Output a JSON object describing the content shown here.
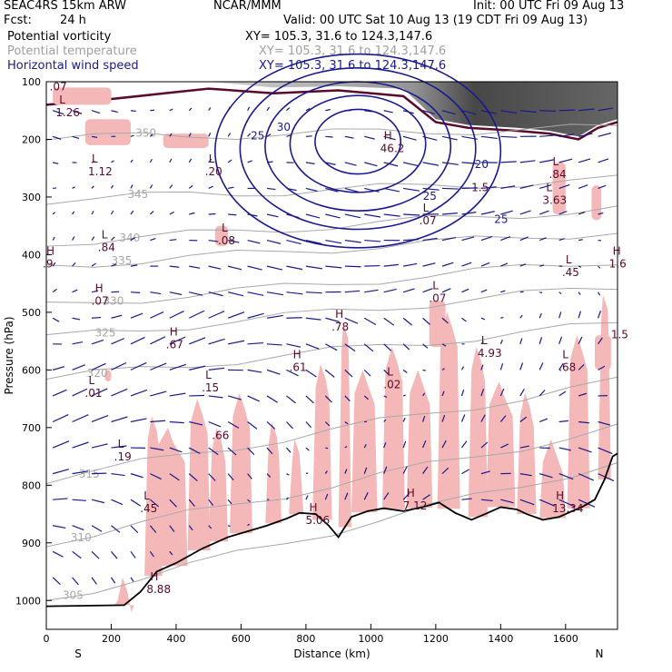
{
  "header": {
    "model": "SEAC4RS 15km ARW",
    "org": "NCAR/MMM",
    "init": "Init: 00 UTC Fri 09 Aug 13",
    "fcst_label": "Fcst:",
    "fcst_value": "24 h",
    "valid": "Valid: 00 UTC Sat 10 Aug 13 (19 CDT Fri 09 Aug 13)"
  },
  "fields": [
    {
      "name": "Potential vorticity",
      "xy": "XY= 105.3, 31.6 to 124.3,147.6",
      "color": "#000000"
    },
    {
      "name": "Potential temperature",
      "xy": "XY= 105.3, 31.6 to 124.3,147.6",
      "color": "#a0a0a0"
    },
    {
      "name": "Horizontal wind speed",
      "xy": "XY= 105.3, 31.6 to 124.3,147.6",
      "color": "#1a1a8c"
    }
  ],
  "chart_data": {
    "type": "cross-section",
    "xlabel": "Distance (km)",
    "ylabel": "Pressure (hPa)",
    "xlim": [
      0,
      1760
    ],
    "ylim": [
      1050,
      100
    ],
    "x_ticks": [
      0,
      200,
      400,
      600,
      800,
      1000,
      1200,
      1400,
      1600
    ],
    "y_ticks": [
      100,
      200,
      300,
      400,
      500,
      600,
      700,
      800,
      900,
      1000
    ],
    "end_labels": {
      "left": "S",
      "right": "N"
    },
    "colors": {
      "pv_shade": "#f5b8b8",
      "pv_contour": "#5a0a2a",
      "theta": "#a8a8a8",
      "wind": "#1a1a8c",
      "terrain": "#000000",
      "stratosphere_shade": "#3a3a3a"
    },
    "terrain_surface": [
      {
        "x": 0,
        "p": 1010
      },
      {
        "x": 240,
        "p": 1008
      },
      {
        "x": 290,
        "p": 985
      },
      {
        "x": 340,
        "p": 950
      },
      {
        "x": 400,
        "p": 935
      },
      {
        "x": 480,
        "p": 910
      },
      {
        "x": 560,
        "p": 890
      },
      {
        "x": 620,
        "p": 880
      },
      {
        "x": 680,
        "p": 870
      },
      {
        "x": 740,
        "p": 858
      },
      {
        "x": 780,
        "p": 848
      },
      {
        "x": 830,
        "p": 850
      },
      {
        "x": 870,
        "p": 870
      },
      {
        "x": 900,
        "p": 890
      },
      {
        "x": 940,
        "p": 855
      },
      {
        "x": 990,
        "p": 845
      },
      {
        "x": 1040,
        "p": 840
      },
      {
        "x": 1100,
        "p": 845
      },
      {
        "x": 1160,
        "p": 838
      },
      {
        "x": 1210,
        "p": 830
      },
      {
        "x": 1260,
        "p": 848
      },
      {
        "x": 1310,
        "p": 860
      },
      {
        "x": 1360,
        "p": 848
      },
      {
        "x": 1400,
        "p": 838
      },
      {
        "x": 1450,
        "p": 842
      },
      {
        "x": 1480,
        "p": 850
      },
      {
        "x": 1530,
        "p": 860
      },
      {
        "x": 1580,
        "p": 855
      },
      {
        "x": 1620,
        "p": 845
      },
      {
        "x": 1650,
        "p": 838
      },
      {
        "x": 1690,
        "p": 825
      },
      {
        "x": 1720,
        "p": 790
      },
      {
        "x": 1745,
        "p": 750
      },
      {
        "x": 1760,
        "p": 745
      }
    ],
    "theta_isentropes": [
      {
        "label": "305",
        "p0": 1000,
        "p1": 760
      },
      {
        "label": "310",
        "p0": 900,
        "p1": 700
      },
      {
        "label": "315",
        "p0": 790,
        "p1": 620
      },
      {
        "label": "320",
        "p0": 615,
        "p1": 520
      },
      {
        "label": "325",
        "p0": 545,
        "p1": 455
      },
      {
        "label": "330",
        "p0": 490,
        "p1": 410
      },
      {
        "label": "335",
        "p0": 420,
        "p1": 360
      },
      {
        "label": "340",
        "p0": 380,
        "p1": 320
      },
      {
        "label": "345",
        "p0": 305,
        "p1": 270
      },
      {
        "label": "350",
        "p0": 198,
        "p1": 180
      }
    ],
    "wind_speed_jet": {
      "center_x": 960,
      "center_p": 200,
      "contours": [
        20,
        25,
        30,
        35,
        40
      ],
      "labels": [
        {
          "text": "25",
          "x": 630,
          "p": 200
        },
        {
          "text": "30",
          "x": 710,
          "p": 185
        },
        {
          "text": "20",
          "x": 1320,
          "p": 250
        },
        {
          "text": "25",
          "x": 1160,
          "p": 305
        },
        {
          "text": "25",
          "x": 1380,
          "p": 345
        }
      ],
      "max_speed": 46
    },
    "extrema": [
      {
        "type": "L",
        "value": "1.26",
        "x": 40,
        "p": 138
      },
      {
        "type": "L",
        "value": "1.12",
        "x": 140,
        "p": 240
      },
      {
        "type": "L",
        "value": ".20",
        "x": 500,
        "p": 240
      },
      {
        "type": "L",
        "value": ".84",
        "x": 170,
        "p": 372
      },
      {
        "type": "L",
        "value": ".08",
        "x": 540,
        "p": 360
      },
      {
        "type": "H",
        "value": ".07",
        "x": 150,
        "p": 465
      },
      {
        "type": "H",
        "value": ".67",
        "x": 380,
        "p": 540
      },
      {
        "type": "L",
        "value": ".15",
        "x": 490,
        "p": 615
      },
      {
        "type": "H",
        "value": ".61",
        "x": 760,
        "p": 580
      },
      {
        "type": "H",
        "value": ".78",
        "x": 890,
        "p": 510
      },
      {
        "type": "L",
        "value": ".07",
        "x": 1190,
        "p": 460
      },
      {
        "type": "L",
        "value": "4.93",
        "x": 1340,
        "p": 555
      },
      {
        "type": "L",
        "value": ".02",
        "x": 1050,
        "p": 610
      },
      {
        "type": "L",
        "value": ".68",
        "x": 1590,
        "p": 580
      },
      {
        "type": "L",
        "value": ".01",
        "x": 130,
        "p": 625
      },
      {
        "type": "L",
        "value": ".19",
        "x": 220,
        "p": 735
      },
      {
        "type": "L",
        "value": ".45",
        "x": 300,
        "p": 825
      },
      {
        "type": "H",
        "value": "5.06",
        "x": 810,
        "p": 845
      },
      {
        "type": "H",
        "value": "7.12",
        "x": 1110,
        "p": 820
      },
      {
        "type": "H",
        "value": "13.34",
        "x": 1570,
        "p": 825
      },
      {
        "type": "H",
        "value": "8.88",
        "x": 320,
        "p": 965
      },
      {
        "type": "H",
        "value": "46.2",
        "x": 1040,
        "p": 200
      },
      {
        "type": "L",
        "value": "3.63",
        "x": 1540,
        "p": 290
      },
      {
        "type": "L",
        "value": ".84",
        "x": 1560,
        "p": 245
      },
      {
        "type": "L",
        "value": ".45",
        "x": 1600,
        "p": 415
      },
      {
        "type": "H",
        "value": "1.6",
        "x": 1745,
        "p": 400
      },
      {
        "type": "H",
        "value": ".9",
        "x": 0,
        "p": 400
      },
      {
        "type": "L",
        "value": ".07",
        "x": 1160,
        "p": 325
      }
    ],
    "pv_label_fragments": [
      {
        "text": ".07",
        "x": 10,
        "p": 115
      },
      {
        "text": "1.5",
        "x": 1740,
        "p": 545
      },
      {
        "text": ".66",
        "x": 510,
        "p": 720
      },
      {
        "text": "1.5",
        "x": 1310,
        "p": 290
      }
    ]
  }
}
